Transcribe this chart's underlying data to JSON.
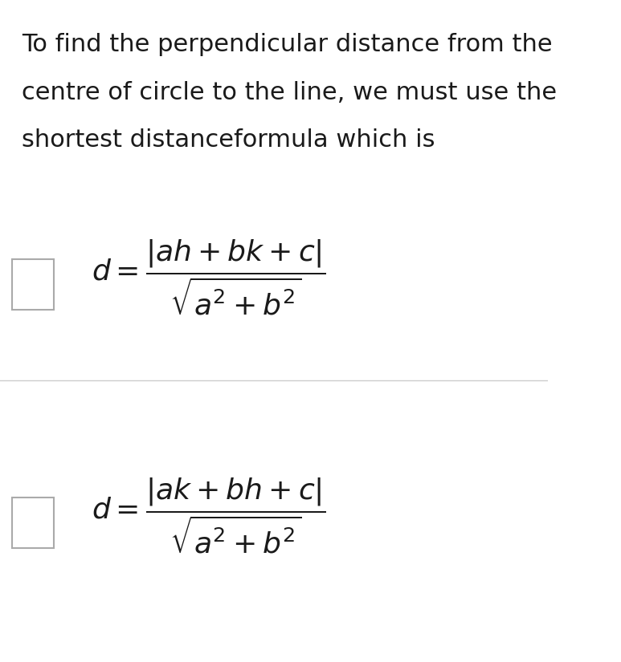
{
  "background_color": "#ffffff",
  "text_color": "#1a1a1a",
  "paragraph_text_lines": [
    "To find the perpendicular distance from the",
    "centre of circle to the line, we must use the",
    "shortest distanceformula which is"
  ],
  "paragraph_fontsize": 22,
  "formula_fontsize": 26,
  "checkbox_color": "#ffffff",
  "checkbox_edge_color": "#aaaaaa",
  "divider_color": "#cccccc",
  "fig_width": 7.73,
  "fig_height": 8.25,
  "dpi": 100
}
